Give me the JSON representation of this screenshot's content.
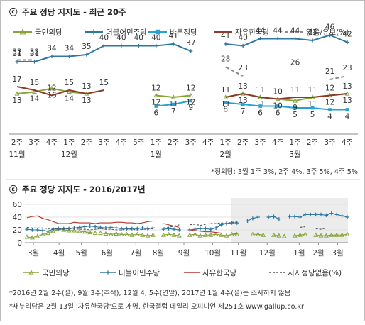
{
  "chart_data": [
    {
      "type": "line",
      "title": "주요 정당 지지도 - 최근 20주",
      "title_mark": "ⓒ",
      "categories": [
        [
          "2주",
          "11월"
        ],
        [
          "3주",
          ""
        ],
        [
          "4주",
          ""
        ],
        [
          "1주",
          "12월"
        ],
        [
          "2주",
          ""
        ],
        [
          "3주",
          ""
        ],
        [
          "4주",
          ""
        ],
        [
          "5주",
          ""
        ],
        [
          "1주",
          "1월"
        ],
        [
          "2주",
          ""
        ],
        [
          "3주",
          ""
        ],
        [
          "4주",
          ""
        ],
        [
          "1주",
          "2월"
        ],
        [
          "2주",
          ""
        ],
        [
          "3주",
          ""
        ],
        [
          "4주",
          ""
        ],
        [
          "1주",
          "3월"
        ],
        [
          "2주",
          ""
        ],
        [
          "3주",
          ""
        ],
        [
          "4주",
          ""
        ]
      ],
      "series": [
        {
          "name": "국민의당",
          "color": "#86a438",
          "marker": "triangle",
          "values": [
            13,
            14,
            16,
            14,
            13,
            null,
            null,
            null,
            12,
            11,
            12,
            null,
            11,
            13,
            11,
            10,
            9,
            11,
            12,
            13
          ]
        },
        {
          "name": "더불어민주당",
          "color": "#2f77a3",
          "marker": "plus",
          "values": [
            31,
            31,
            34,
            34,
            35,
            40,
            40,
            40,
            40,
            41,
            37,
            null,
            41,
            40,
            44,
            44,
            44,
            43,
            46,
            42
          ]
        },
        {
          "name": "바른정당",
          "color": "#27a2d8",
          "marker": "square",
          "values": [
            null,
            null,
            null,
            null,
            null,
            null,
            null,
            null,
            6,
            7,
            9,
            null,
            8,
            7,
            6,
            6,
            5,
            5,
            4,
            4
          ]
        },
        {
          "name": "자유한국당",
          "color": "#8a3b2a",
          "marker": "none",
          "values": [
            17,
            15,
            12,
            15,
            13,
            15,
            null,
            null,
            12,
            null,
            12,
            null,
            11,
            13,
            11,
            10,
            11,
            11,
            12,
            13
          ]
        },
        {
          "name": "없음/유보(%)",
          "color": "#8a8a8a",
          "marker": "none",
          "dashed": true,
          "values": [
            32,
            32,
            null,
            null,
            null,
            null,
            null,
            null,
            null,
            null,
            null,
            null,
            28,
            23,
            null,
            null,
            26,
            null,
            21,
            23
          ]
        }
      ],
      "note": "*정의당: 3월 1주 3%, 2주 4%, 3주 5%, 4주 5%"
    },
    {
      "type": "line",
      "title": "주요 정당 지지도 - 2016/2017년",
      "title_mark": "ⓒ",
      "y_ticks": [
        0,
        20,
        40,
        60
      ],
      "ylim": [
        0,
        60
      ],
      "x_month_labels": [
        "3월",
        "4월",
        "5월",
        "6월",
        "7월",
        "8월",
        "9월",
        "10월",
        "11월",
        "12월",
        "1월",
        "2월",
        "3월"
      ],
      "shaded_from_label": "11월",
      "series": [
        {
          "name": "국민의당",
          "color": "#86a438",
          "marker": "triangle",
          "values": [
            9,
            8,
            10,
            13,
            15,
            18,
            21,
            20,
            19,
            19,
            18,
            17,
            16,
            15,
            15,
            14,
            13,
            14,
            13,
            13,
            12,
            13,
            12,
            11,
            12,
            null,
            12,
            13,
            12,
            11,
            null,
            12,
            13,
            11,
            12,
            12,
            13,
            12,
            11,
            13,
            13,
            null,
            null,
            13,
            13,
            12,
            null,
            12,
            11,
            10,
            null,
            11,
            12,
            13,
            null,
            12,
            11,
            11,
            12,
            12,
            12,
            13
          ]
        },
        {
          "name": "더불어민주당",
          "color": "#2f77a3",
          "marker": "plus",
          "values": [
            21,
            20,
            20,
            19,
            18,
            21,
            22,
            22,
            22,
            23,
            24,
            25,
            26,
            25,
            24,
            23,
            24,
            23,
            22,
            22,
            22,
            22,
            23,
            22,
            23,
            null,
            21,
            22,
            21,
            20,
            null,
            20,
            21,
            22,
            22,
            21,
            23,
            28,
            30,
            31,
            31,
            null,
            34,
            38,
            40,
            null,
            40,
            41,
            37,
            null,
            41,
            41,
            40,
            44,
            44,
            44,
            44,
            43,
            46,
            44,
            42,
            40
          ]
        },
        {
          "name": "자유한국당",
          "color": "#b9312a",
          "marker": "none",
          "values": [
            39,
            41,
            42,
            38,
            36,
            33,
            30,
            30,
            30,
            32,
            31,
            31,
            31,
            30,
            31,
            31,
            31,
            32,
            32,
            31,
            31,
            30,
            31,
            33,
            34,
            null,
            30,
            28,
            26,
            24,
            null,
            20,
            19,
            18,
            17,
            17,
            16,
            15,
            15,
            15,
            14,
            null,
            null,
            null,
            null,
            null,
            null,
            null,
            null,
            null,
            null,
            null,
            null,
            null,
            null,
            null,
            null,
            null,
            null,
            null,
            null,
            null
          ]
        },
        {
          "name": "지지정당없음(%)",
          "color": "#555555",
          "marker": "none",
          "dashed": true,
          "values": [
            24,
            23,
            23,
            23,
            22,
            22,
            21,
            21,
            22,
            22,
            21,
            21,
            20,
            21,
            22,
            21,
            21,
            20,
            20,
            21,
            21,
            20,
            21,
            21,
            22,
            null,
            23,
            24,
            26,
            28,
            null,
            28,
            29,
            27,
            29,
            30,
            30,
            31,
            30,
            32,
            32,
            null,
            null,
            28,
            null,
            null,
            26,
            null,
            23,
            null,
            26,
            null,
            24,
            25,
            null,
            22,
            21,
            23,
            null,
            null,
            null,
            null
          ]
        }
      ],
      "notes": [
        "*2016년 2월 2주(설), 9월 3주(추석), 12월 4, 5주(연말), 2017년 1월 4주(설)는 조사하지 않음",
        "*새누리당은 2월 13일 '자유한국당'으로 개명. 한국갤럽 데일리 오피니언 제251호 www.gallup.co.kr"
      ]
    }
  ]
}
